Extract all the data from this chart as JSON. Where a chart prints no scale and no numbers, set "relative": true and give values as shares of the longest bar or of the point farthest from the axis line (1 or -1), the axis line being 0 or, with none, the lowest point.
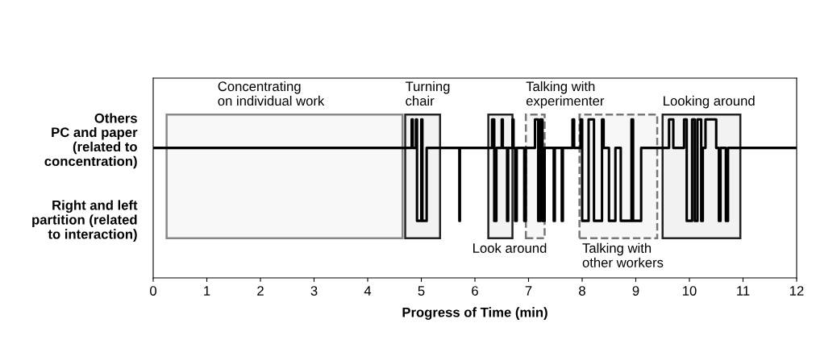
{
  "chart_data": {
    "type": "step",
    "xlabel": "Progress of Time (min)",
    "relative": true,
    "x": [
      0,
      4.8,
      4.82,
      4.84,
      4.9,
      4.92,
      4.96,
      5.0,
      5.02,
      5.06,
      5.1,
      5.7,
      5.71,
      5.72,
      6.3,
      6.32,
      6.36,
      6.4,
      6.5,
      6.52,
      6.6,
      6.62,
      6.7,
      6.72,
      6.75,
      6.78,
      6.9,
      6.92,
      6.95,
      7.1,
      7.12,
      7.18,
      7.22,
      7.26,
      7.3,
      7.45,
      7.47,
      7.49,
      7.6,
      7.62,
      7.64,
      7.8,
      7.82,
      7.85,
      7.95,
      7.97,
      8.0,
      8.1,
      8.12,
      8.2,
      8.22,
      8.35,
      8.37,
      8.4,
      8.45,
      8.5,
      8.6,
      8.62,
      8.7,
      8.72,
      8.9,
      8.92,
      8.95,
      9.05,
      9.1,
      9.6,
      9.62,
      9.7,
      9.85,
      9.9,
      9.95,
      10.02,
      10.05,
      10.1,
      10.15,
      10.2,
      10.22,
      10.25,
      10.3,
      10.45,
      10.5,
      10.55,
      10.58,
      10.65,
      10.68,
      10.72,
      12
    ],
    "series": [
      {
        "color": "#000000",
        "values": [
          0.82,
          0.82,
          1,
          0.82,
          1,
          0.36,
          0.36,
          1,
          0.36,
          0.36,
          0.82,
          0.82,
          0.36,
          0.82,
          0.82,
          1,
          0.36,
          0.82,
          1,
          0.82,
          0.36,
          0.82,
          1,
          0.82,
          0.36,
          0.82,
          0.82,
          0.36,
          0.82,
          0.82,
          1,
          0.36,
          1,
          0.36,
          0.82,
          0.82,
          0.36,
          0.82,
          0.82,
          0.36,
          0.82,
          0.82,
          1,
          0.82,
          0.82,
          1,
          0.36,
          0.36,
          1,
          1,
          0.36,
          0.36,
          1,
          0.82,
          0.82,
          0.36,
          0.36,
          0.82,
          0.82,
          0.36,
          0.36,
          1,
          0.36,
          0.36,
          0.82,
          0.82,
          1,
          0.82,
          0.82,
          1,
          0.36,
          0.36,
          1,
          0.36,
          1,
          1,
          0.36,
          0.82,
          1,
          1,
          0.82,
          0.36,
          0.82,
          0.82,
          0.36,
          0.82,
          0.82
        ]
      }
    ],
    "xlim": [
      0,
      12
    ],
    "xticks": [
      0,
      1,
      2,
      3,
      4,
      5,
      6,
      7,
      8,
      9,
      10,
      11,
      12
    ],
    "bands": [
      {
        "axis": "x",
        "from": 0.25,
        "to": 4.65,
        "color": "#888888",
        "label": "Concentrating\non individual work"
      },
      {
        "axis": "x",
        "from": 4.7,
        "to": 5.35,
        "color": "#222222",
        "label": "Turning\nchair"
      },
      {
        "axis": "x",
        "from": 6.25,
        "to": 6.7,
        "color": "#222222",
        "label": "Look around"
      },
      {
        "axis": "x",
        "from": 6.95,
        "to": 7.3,
        "color": "#777777",
        "label": "Talking with\nexperimenter"
      },
      {
        "axis": "x",
        "from": 7.95,
        "to": 9.4,
        "color": "#777777",
        "label": "Talking with\nother workers"
      },
      {
        "axis": "x",
        "from": 9.5,
        "to": 10.95,
        "color": "#222222",
        "label": "Looking around"
      }
    ],
    "annotations": [
      "Others",
      "PC and paper\n(related to\nconcentration)",
      "Right and left\npartition (related\nto interaction)"
    ],
    "marker": "none",
    "line_style": "solid",
    "grid": false,
    "legend": false
  }
}
